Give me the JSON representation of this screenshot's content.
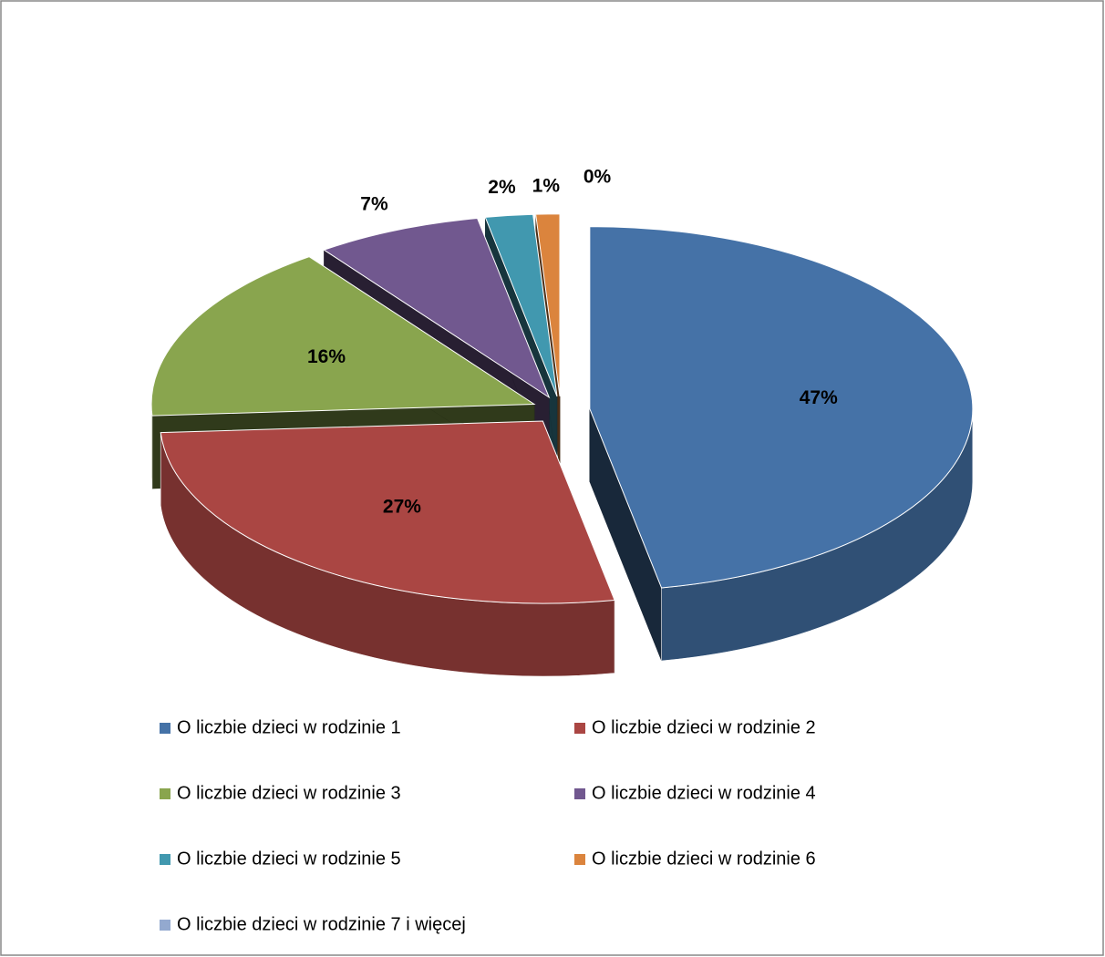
{
  "chart_data": {
    "type": "pie",
    "three_d": true,
    "exploded": true,
    "categories": [
      "O liczbie dzieci w rodzinie 1",
      "O liczbie dzieci w rodzinie 2",
      "O liczbie dzieci w rodzinie 3",
      "O liczbie dzieci w rodzinie 4",
      "O liczbie dzieci w rodzinie 5",
      "O liczbie dzieci w rodzinie 6",
      "O liczbie dzieci w rodzinie 7 i więcej"
    ],
    "values": [
      47,
      27,
      16,
      7,
      2,
      1,
      0
    ],
    "value_labels": [
      "47%",
      "27%",
      "16%",
      "7%",
      "2%",
      "1%",
      "0%"
    ],
    "colors": [
      "#4572a7",
      "#aa4643",
      "#89a54e",
      "#71588f",
      "#4198af",
      "#db843d",
      "#93a9cf"
    ],
    "legend": "bottom"
  }
}
